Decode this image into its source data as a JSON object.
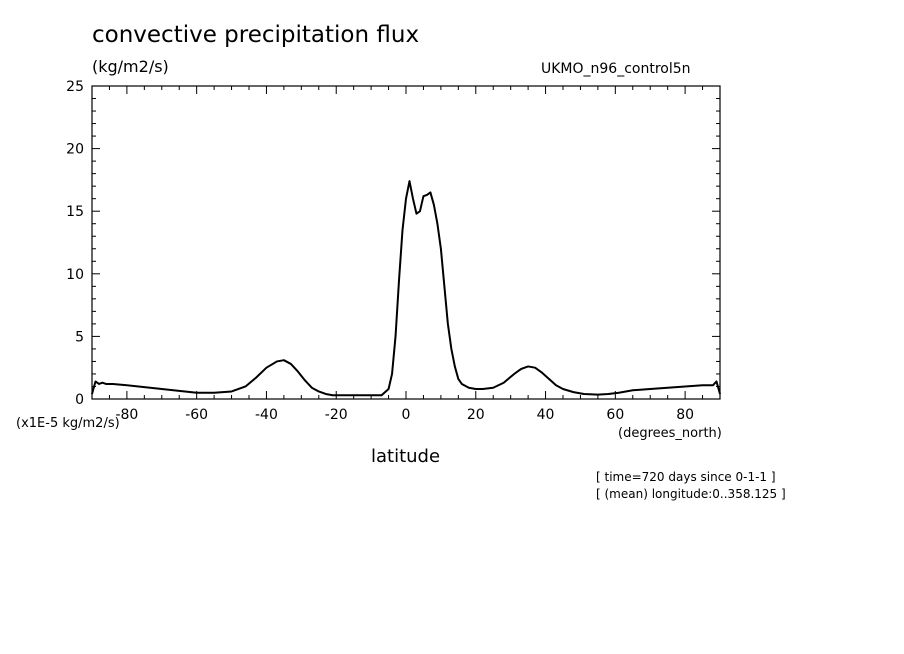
{
  "chart_data": {
    "type": "line",
    "title": "convective precipitation flux",
    "units_label": "(kg/m2/s)",
    "dataset_label": "UKMO_n96_control5n",
    "scale_note": "(x1E-5 kg/m2/s)",
    "xlabel": "latitude",
    "xunits": "(degrees_north)",
    "notes": [
      "[ time=720 days since 0-1-1 ]",
      "[ (mean) longitude:0..358.125 ]"
    ],
    "xlim": [
      -90,
      90
    ],
    "ylim": [
      0,
      25
    ],
    "xticks": [
      -80,
      -60,
      -40,
      -20,
      0,
      20,
      40,
      60,
      80
    ],
    "xtick_labels": [
      "-80",
      "-60",
      "-40",
      "-20",
      "0",
      "20",
      "40",
      "60",
      "80"
    ],
    "yticks": [
      0,
      5,
      10,
      15,
      20,
      25
    ],
    "ytick_labels": [
      "0",
      "5",
      "10",
      "15",
      "20",
      "25"
    ],
    "grid": false,
    "series": [
      {
        "color": "#000000",
        "x": [
          -90,
          -89,
          -88,
          -87,
          -86,
          -84,
          -80,
          -75,
          -70,
          -65,
          -60,
          -55,
          -50,
          -46,
          -43,
          -40,
          -37,
          -35,
          -33,
          -31,
          -29,
          -27,
          -25,
          -23,
          -21,
          -19,
          -15,
          -10,
          -7,
          -5,
          -4,
          -3,
          -2,
          -1,
          0,
          1,
          2,
          3,
          4,
          5,
          6,
          7,
          8,
          9,
          10,
          11,
          12,
          13,
          14,
          15,
          16,
          18,
          20,
          22,
          25,
          28,
          31,
          33,
          35,
          37,
          39,
          41,
          43,
          45,
          48,
          51,
          55,
          58,
          61,
          65,
          70,
          75,
          80,
          85,
          88,
          89,
          90
        ],
        "y": [
          0.4,
          1.4,
          1.2,
          1.3,
          1.2,
          1.2,
          1.1,
          0.95,
          0.8,
          0.65,
          0.5,
          0.5,
          0.6,
          1.0,
          1.7,
          2.5,
          3.0,
          3.1,
          2.8,
          2.2,
          1.5,
          0.9,
          0.6,
          0.4,
          0.3,
          0.3,
          0.3,
          0.3,
          0.3,
          0.8,
          2.0,
          5.0,
          9.5,
          13.5,
          16.0,
          17.4,
          16.0,
          14.8,
          15.0,
          16.2,
          16.3,
          16.5,
          15.5,
          14.0,
          12.0,
          9.0,
          6.0,
          4.0,
          2.6,
          1.6,
          1.2,
          0.9,
          0.8,
          0.8,
          0.9,
          1.3,
          2.0,
          2.4,
          2.6,
          2.5,
          2.1,
          1.6,
          1.1,
          0.8,
          0.55,
          0.4,
          0.35,
          0.4,
          0.5,
          0.7,
          0.8,
          0.9,
          1.0,
          1.1,
          1.1,
          1.4,
          0.4
        ]
      }
    ]
  }
}
